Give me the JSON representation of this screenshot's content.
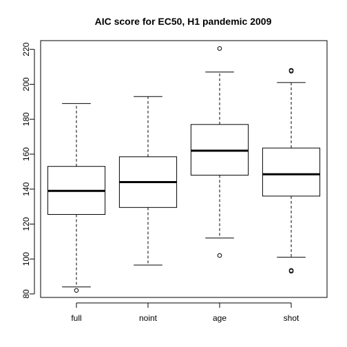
{
  "chart_data": {
    "type": "boxplot",
    "title": "AIC score for EC50, H1 pandemic 2009",
    "xlabel": "",
    "ylabel": "",
    "categories": [
      "full",
      "noint",
      "age",
      "shot"
    ],
    "boxes": [
      {
        "category": "full",
        "min": 84,
        "q1": 125.5,
        "median": 139,
        "q3": 153,
        "max": 189,
        "outliers": [
          82
        ]
      },
      {
        "category": "noint",
        "min": 96.5,
        "q1": 129.5,
        "median": 144,
        "q3": 158.5,
        "max": 193,
        "outliers": []
      },
      {
        "category": "age",
        "min": 112,
        "q1": 148,
        "median": 162,
        "q3": 177,
        "max": 207,
        "outliers": [
          102,
          220.5
        ]
      },
      {
        "category": "shot",
        "min": 101,
        "q1": 136,
        "median": 148.5,
        "q3": 163.5,
        "max": 201,
        "outliers": [
          93,
          93.5,
          207.5,
          208
        ]
      }
    ],
    "ylim": [
      78,
      225
    ],
    "yticks": [
      80,
      100,
      120,
      140,
      160,
      180,
      200,
      220
    ],
    "grid": false,
    "legend": "none"
  }
}
